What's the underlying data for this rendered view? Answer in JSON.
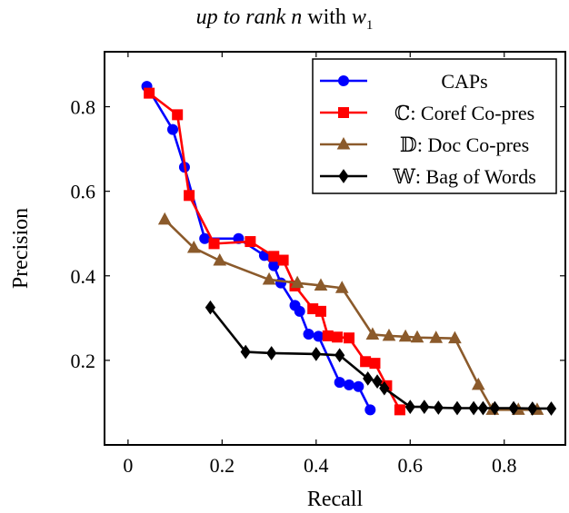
{
  "title": {
    "italic_part": "up to rank n",
    "plain_part": " with ",
    "math_symbol": "w",
    "math_subscript": "1"
  },
  "chart_data": {
    "type": "line",
    "xlabel": "Recall",
    "ylabel": "Precision",
    "xlim": [
      -0.05,
      0.93
    ],
    "ylim": [
      0.0,
      0.93
    ],
    "xticks": [
      {
        "value": 0,
        "label": "0"
      },
      {
        "value": 0.2,
        "label": "0.2"
      },
      {
        "value": 0.4,
        "label": "0.4"
      },
      {
        "value": 0.6,
        "label": "0.6"
      },
      {
        "value": 0.8,
        "label": "0.8"
      }
    ],
    "yticks": [
      {
        "value": 0.2,
        "label": "0.2"
      },
      {
        "value": 0.4,
        "label": "0.4"
      },
      {
        "value": 0.6,
        "label": "0.6"
      },
      {
        "value": 0.8,
        "label": "0.8"
      }
    ],
    "grid": false,
    "legend_position": "top-right",
    "series": [
      {
        "name": "CAPs",
        "color": "#0000ff",
        "marker": "circle",
        "points": [
          [
            0.04,
            0.848
          ],
          [
            0.095,
            0.746
          ],
          [
            0.12,
            0.657
          ],
          [
            0.163,
            0.488
          ],
          [
            0.235,
            0.488
          ],
          [
            0.29,
            0.448
          ],
          [
            0.31,
            0.424
          ],
          [
            0.325,
            0.383
          ],
          [
            0.355,
            0.33
          ],
          [
            0.365,
            0.316
          ],
          [
            0.384,
            0.262
          ],
          [
            0.405,
            0.257
          ],
          [
            0.45,
            0.148
          ],
          [
            0.47,
            0.142
          ],
          [
            0.49,
            0.138
          ],
          [
            0.515,
            0.083
          ]
        ]
      },
      {
        "name": "ℂ: Coref Co-pres",
        "color": "#ff0000",
        "marker": "square",
        "points": [
          [
            0.045,
            0.832
          ],
          [
            0.105,
            0.781
          ],
          [
            0.13,
            0.59
          ],
          [
            0.183,
            0.476
          ],
          [
            0.26,
            0.481
          ],
          [
            0.31,
            0.446
          ],
          [
            0.33,
            0.437
          ],
          [
            0.355,
            0.376
          ],
          [
            0.393,
            0.322
          ],
          [
            0.41,
            0.316
          ],
          [
            0.425,
            0.258
          ],
          [
            0.445,
            0.255
          ],
          [
            0.47,
            0.253
          ],
          [
            0.505,
            0.197
          ],
          [
            0.525,
            0.193
          ],
          [
            0.55,
            0.14
          ],
          [
            0.578,
            0.083
          ]
        ]
      },
      {
        "name": "𝔻: Doc Co-pres",
        "color": "#8b5a2b",
        "marker": "triangle",
        "points": [
          [
            0.078,
            0.533
          ],
          [
            0.14,
            0.466
          ],
          [
            0.195,
            0.436
          ],
          [
            0.3,
            0.391
          ],
          [
            0.36,
            0.383
          ],
          [
            0.41,
            0.377
          ],
          [
            0.455,
            0.371
          ],
          [
            0.52,
            0.261
          ],
          [
            0.555,
            0.258
          ],
          [
            0.59,
            0.256
          ],
          [
            0.615,
            0.254
          ],
          [
            0.655,
            0.253
          ],
          [
            0.695,
            0.252
          ],
          [
            0.745,
            0.142
          ],
          [
            0.775,
            0.083
          ],
          [
            0.83,
            0.083
          ],
          [
            0.87,
            0.083
          ]
        ]
      },
      {
        "name": "𝕎: Bag of Words",
        "color": "#000000",
        "marker": "diamond",
        "points": [
          [
            0.175,
            0.325
          ],
          [
            0.25,
            0.22
          ],
          [
            0.305,
            0.217
          ],
          [
            0.4,
            0.215
          ],
          [
            0.45,
            0.212
          ],
          [
            0.51,
            0.157
          ],
          [
            0.53,
            0.15
          ],
          [
            0.545,
            0.134
          ],
          [
            0.6,
            0.09
          ],
          [
            0.63,
            0.09
          ],
          [
            0.66,
            0.088
          ],
          [
            0.7,
            0.087
          ],
          [
            0.735,
            0.087
          ],
          [
            0.755,
            0.087
          ],
          [
            0.78,
            0.087
          ],
          [
            0.82,
            0.087
          ],
          [
            0.86,
            0.086
          ],
          [
            0.9,
            0.086
          ]
        ]
      }
    ]
  }
}
